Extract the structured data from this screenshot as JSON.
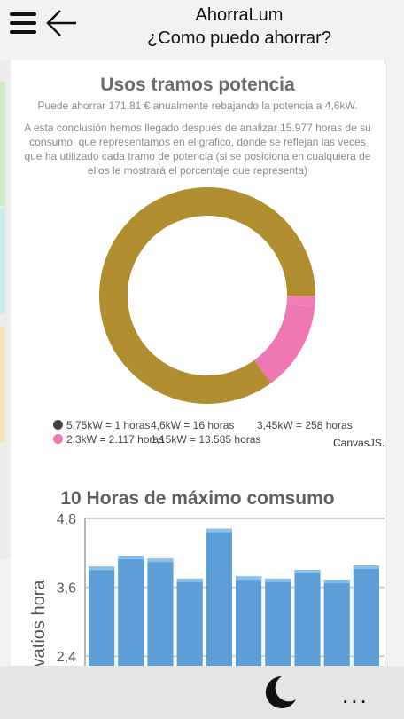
{
  "header": {
    "app_title": "AhorraLum",
    "subtitle": "¿Como puedo ahorrar?",
    "menu_icon": "hamburger-icon",
    "back_icon": "arrow-left-icon"
  },
  "section1": {
    "title": "Usos tramos potencia",
    "summary": "Puede ahorrar 171,81 € anualmente rebajando la potencia a 4,6kW.",
    "description": "A esta conclusión hemos llegado después de analizar 15.977 horas de su consumo, que representamos en el grafico, donde se reflejan las veces que ha utilizado cada tramo de potencia (si se posiciona en cualquiera de ellos le mostrará el porcentaje que representa)",
    "credit": "CanvasJS.com"
  },
  "section2": {
    "title": "10 Horas de máximo comsumo",
    "ylabel_visible": "ovatios hora"
  },
  "chart_data": [
    {
      "type": "pie",
      "style": "doughnut",
      "title": "Usos tramos potencia",
      "legend_position": "bottom",
      "slices": [
        {
          "label": "5,75kW = 1 horas",
          "value": 1,
          "color": "#444444"
        },
        {
          "label": "4,6kW = 16 horas",
          "value": 16,
          "color": "#f79d3c"
        },
        {
          "label": "3,45kW = 258 horas",
          "value": 258,
          "color": "#f17fb7"
        },
        {
          "label": "2,3kW = 2.117 horas",
          "value": 2117,
          "color": "#ef78b4"
        },
        {
          "label": "1,15kW = 13.585 horas",
          "value": 13585,
          "color": "#b08d2e"
        }
      ],
      "legend_entries": [
        {
          "text": "5,75kW = 1 horas",
          "dot": "#444444"
        },
        {
          "text": "4,6kW = 16 horas",
          "dot": ""
        },
        {
          "text": "3,45kW = 258 horas",
          "dot": ""
        },
        {
          "text": "2,3kW = 2.117 horas",
          "dot": "#ef78b4"
        },
        {
          "text": "1,15kW = 13.585 horas",
          "dot": ""
        }
      ]
    },
    {
      "type": "bar",
      "title": "10 Horas de máximo comsumo",
      "ylabel": "ovatios hora",
      "ylim": [
        1.8,
        4.8
      ],
      "yticks": [
        "4,8",
        "3,6",
        "2,4"
      ],
      "ytick_values": [
        4.8,
        3.6,
        2.4
      ],
      "values": [
        3.96,
        4.15,
        4.1,
        3.75,
        4.62,
        3.79,
        3.75,
        3.9,
        3.73,
        3.98
      ],
      "color": "#5b9fd6",
      "grid": true
    }
  ],
  "bottom_bar": {
    "theme_icon": "moon-icon",
    "more_label": "..."
  }
}
